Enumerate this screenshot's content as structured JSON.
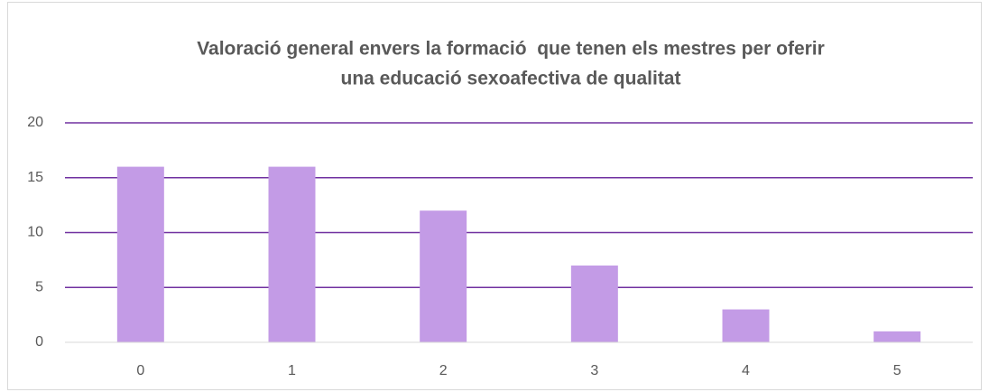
{
  "chart_data": {
    "type": "bar",
    "title": [
      "Valoració general envers la formació  que tenen els mestres per oferir",
      "una educació sexoafectiva de qualitat"
    ],
    "categories": [
      "0",
      "1",
      "2",
      "3",
      "4",
      "5"
    ],
    "values": [
      16,
      16,
      12,
      7,
      3,
      1
    ],
    "color": "#c39be6",
    "ylim": [
      0,
      20
    ],
    "yticks": [
      0,
      5,
      10,
      15,
      20
    ],
    "grid": true,
    "grid_color": "#7030a0"
  }
}
